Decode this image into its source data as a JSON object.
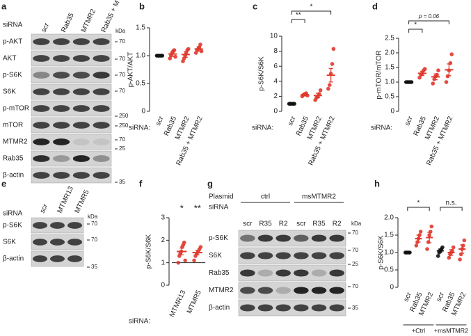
{
  "blots": [
    {
      "panel": "a",
      "lane_header": "siRNA",
      "lanes": [
        "scr",
        "Rab35",
        "MTMR2",
        "Rab35 + MTMR2"
      ],
      "rows": [
        "p-AKT",
        "AKT",
        "p-S6K",
        "S6K",
        "p-mTOR",
        "mTOR",
        "MTMR2",
        "Rab35",
        "β-actin"
      ],
      "kda": "kDa",
      "markers": [
        "70",
        "70",
        "70",
        "70",
        "250",
        "250",
        "70",
        "25",
        "35"
      ]
    },
    {
      "panel": "e",
      "lane_header": "siRNA",
      "lanes": [
        "scr",
        "MTMR13",
        "MTMR5"
      ],
      "rows": [
        "p-S6K",
        "S6K",
        "β-actin"
      ],
      "kda": "kDa",
      "markers": [
        "70",
        "70",
        "35"
      ]
    },
    {
      "panel": "g",
      "plasmid_header": "Plasmid",
      "plasmids": [
        "ctrl",
        "msMTMR2"
      ],
      "lane_header": "siRNA",
      "lanes": [
        "scr",
        "R35",
        "R2",
        "scr",
        "R35",
        "R2"
      ],
      "rows": [
        "p-S6K",
        "S6K",
        "Rab35",
        "MTMR2",
        "β-actin"
      ],
      "kda": "kDa",
      "markers": [
        "70",
        "70",
        "25",
        "70",
        "35"
      ]
    }
  ],
  "chart_data": [
    {
      "type": "dot",
      "panel": "b",
      "ylabel": "p-AKT/AKT",
      "xlabel": "siRNA:",
      "categories": [
        "scr",
        "Rab35",
        "MTMR2",
        "Rab35 + MTMR2"
      ],
      "colors": [
        "#111111",
        "#e0392d",
        "#e0392d",
        "#e0392d"
      ],
      "means": [
        1.0,
        1.03,
        1.02,
        1.12
      ],
      "errors": [
        0.01,
        0.04,
        0.05,
        0.04
      ],
      "points": [
        [
          1,
          1,
          1,
          1,
          1,
          1
        ],
        [
          0.95,
          1.0,
          1.05,
          1.08,
          1.1,
          0.98
        ],
        [
          0.9,
          0.95,
          1.0,
          1.05,
          1.1,
          1.12
        ],
        [
          1.05,
          1.1,
          1.12,
          1.15,
          1.2,
          1.08
        ]
      ],
      "ylim": [
        0,
        1.5
      ],
      "yticks": [
        0,
        0.5,
        {
          "value": 1,
          "label": "1.0"
        },
        1.5
      ],
      "annotations": []
    },
    {
      "type": "dot",
      "panel": "c",
      "ylabel": "p-S6K/S6K",
      "xlabel": "siRNA:",
      "categories": [
        "scr",
        "Rab35",
        "MTMR2",
        "Rab35 + MTMR2"
      ],
      "colors": [
        "#111111",
        "#e0392d",
        "#e0392d",
        "#e0392d"
      ],
      "means": [
        1.0,
        2.2,
        2.1,
        4.8
      ],
      "errors": [
        0.05,
        0.15,
        0.3,
        0.9
      ],
      "points": [
        [
          1,
          1,
          1,
          1,
          1
        ],
        [
          2.0,
          2.2,
          2.3,
          2.4,
          2.1
        ],
        [
          1.5,
          1.8,
          2.0,
          2.3,
          2.8
        ],
        [
          3.0,
          3.5,
          5.0,
          6.3,
          8.3
        ]
      ],
      "ylim": [
        0,
        10
      ],
      "yticks": [
        0,
        2,
        4,
        6,
        8,
        10
      ],
      "annotations": [
        "**",
        "*"
      ]
    },
    {
      "type": "dot",
      "panel": "d",
      "ylabel": "p-mTOR/mTOR",
      "xlabel": "siRNA:",
      "categories": [
        "scr",
        "Rab35",
        "MTMR2",
        "Rab35 + MTMR2"
      ],
      "colors": [
        "#111111",
        "#e0392d",
        "#e0392d",
        "#e0392d"
      ],
      "means": [
        1.0,
        1.3,
        1.18,
        1.42
      ],
      "errors": [
        0.01,
        0.07,
        0.1,
        0.2
      ],
      "points": [
        [
          1,
          1,
          1,
          1,
          1
        ],
        [
          1.15,
          1.25,
          1.3,
          1.4,
          1.45
        ],
        [
          0.95,
          1.1,
          1.2,
          1.25,
          1.4
        ],
        [
          1.0,
          1.2,
          1.4,
          1.65,
          1.95
        ]
      ],
      "ylim": [
        0,
        2.5
      ],
      "yticks": [
        0,
        0.5,
        {
          "value": 1,
          "label": "1.0"
        },
        1.5,
        {
          "value": 2,
          "label": "2.0"
        },
        2.5
      ],
      "annotations": [
        "*",
        "p = 0.06"
      ]
    },
    {
      "type": "dot",
      "panel": "f",
      "ylabel": "p-S6K/S6K",
      "xlabel": "siRNA:",
      "categories": [
        "MTMR13",
        "MTMR5"
      ],
      "colors": [
        "#e0392d",
        "#e0392d"
      ],
      "means": [
        1.5,
        1.45
      ],
      "errors": [
        0.15,
        0.1
      ],
      "points": [
        [
          1.0,
          1.3,
          1.4,
          1.5,
          1.7,
          1.8,
          1.9,
          1.1
        ],
        [
          1.1,
          1.3,
          1.4,
          1.5,
          1.6,
          1.7
        ]
      ],
      "ylim": [
        0,
        3
      ],
      "yticks": [
        0,
        1,
        2,
        3
      ],
      "refline": 1,
      "annotations": [
        "*",
        "**"
      ]
    },
    {
      "type": "dot",
      "panel": "h",
      "ylabel": "p-S6K/S6K",
      "categories": [
        "scr",
        "Rab35",
        "MTMR2",
        "scr",
        "Rab35",
        "MTMR2"
      ],
      "colors": [
        "#111111",
        "#e0392d",
        "#e0392d",
        "#111111",
        "#e0392d",
        "#e0392d"
      ],
      "means": [
        1.0,
        1.4,
        1.43,
        1.05,
        1.0,
        1.1
      ],
      "errors": [
        0.01,
        0.1,
        0.15,
        0.05,
        0.08,
        0.12
      ],
      "points": [
        [
          1,
          1,
          1,
          1,
          1
        ],
        [
          1.2,
          1.3,
          1.4,
          1.5,
          1.6
        ],
        [
          1.1,
          1.3,
          1.5,
          1.6,
          1.75
        ],
        [
          0.9,
          1.0,
          1.05,
          1.1,
          1.15
        ],
        [
          0.85,
          0.95,
          1.0,
          1.05,
          1.15
        ],
        [
          0.8,
          0.95,
          1.1,
          1.2,
          1.35
        ]
      ],
      "ylim": [
        0,
        2
      ],
      "yticks": [
        0,
        0.5,
        {
          "value": 1,
          "label": "1.0"
        },
        1.5,
        {
          "value": 2,
          "label": "2.0"
        }
      ],
      "annotations": [
        "*",
        "n.s."
      ],
      "groups": [
        "+Ctrl",
        "+msMTMR2"
      ]
    }
  ]
}
